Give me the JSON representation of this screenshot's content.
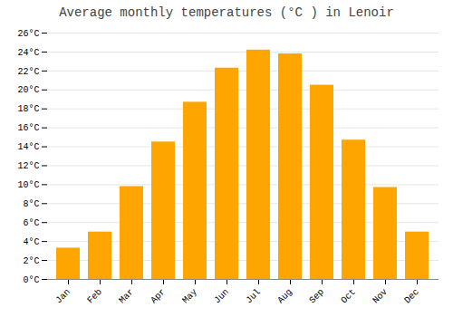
{
  "chart_data": {
    "type": "bar",
    "title": "Average monthly temperatures (°C ) in Lenoir",
    "categories": [
      "Jan",
      "Feb",
      "Mar",
      "Apr",
      "May",
      "Jun",
      "Jul",
      "Aug",
      "Sep",
      "Oct",
      "Nov",
      "Dec"
    ],
    "values": [
      3.3,
      5.0,
      9.8,
      14.5,
      18.7,
      22.3,
      24.2,
      23.8,
      20.5,
      14.7,
      9.7,
      5.0
    ],
    "color": "#FFA500",
    "ylim": [
      0,
      26
    ],
    "yticks": [
      {
        "value": 0,
        "label": "0°C"
      },
      {
        "value": 2,
        "label": "2°C"
      },
      {
        "value": 4,
        "label": "4°C"
      },
      {
        "value": 6,
        "label": "6°C"
      },
      {
        "value": 8,
        "label": "8°C"
      },
      {
        "value": 10,
        "label": "10°C"
      },
      {
        "value": 12,
        "label": "12°C"
      },
      {
        "value": 14,
        "label": "14°C"
      },
      {
        "value": 16,
        "label": "16°C"
      },
      {
        "value": 18,
        "label": "18°C"
      },
      {
        "value": 20,
        "label": "20°C"
      },
      {
        "value": 22,
        "label": "22°C"
      },
      {
        "value": 24,
        "label": "24°C"
      },
      {
        "value": 26,
        "label": "26°C"
      }
    ],
    "grid": true
  }
}
